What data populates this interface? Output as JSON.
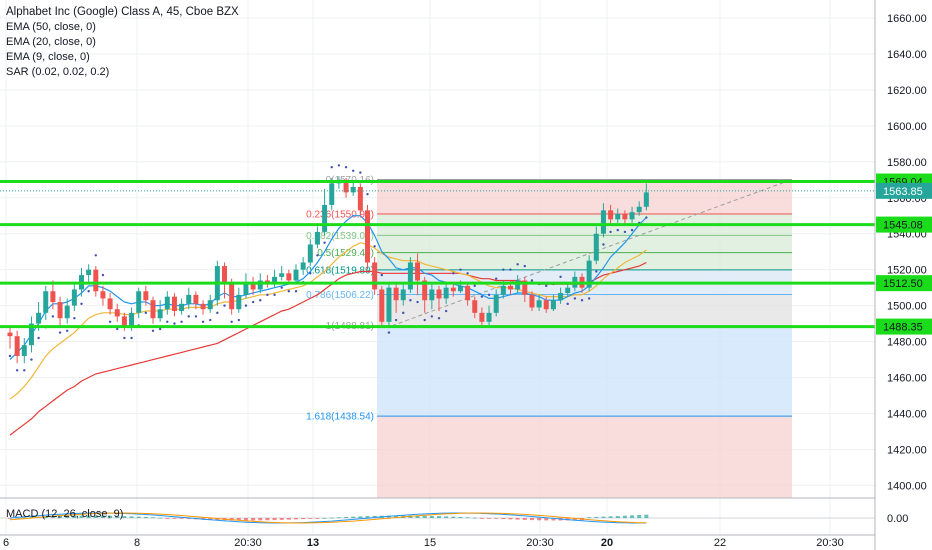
{
  "legend": {
    "title": "Alphabet Inc (Google) Class A, 45, Cboe BZX",
    "studies": [
      "EMA (50, close, 0)",
      "EMA (20, close, 0)",
      "EMA (9, close, 0)",
      "SAR (0.02, 0.02, 0.2)"
    ]
  },
  "macd_label": "MACD (12, 26, close, 9)",
  "colors": {
    "up": "#26a69a",
    "down": "#ef5350",
    "ema50": "#e53935",
    "ema20": "#f0b73a",
    "ema9": "#2196f3",
    "sar": "#3f51b5",
    "level": "#1bdc1b",
    "fib_red": "#f8d3d3",
    "fib_green": "#d9ecd9",
    "fib_gray": "#e3e3e3",
    "fib_blue": "#cfe5fb"
  },
  "chart_data": {
    "type": "candlestick",
    "x_tick_labels": [
      "6",
      "8",
      "20:30",
      "13",
      "15",
      "20:30",
      "20",
      "22",
      "20:30"
    ],
    "y_ticks": [
      "1660.00",
      "1640.00",
      "1620.00",
      "1600.00",
      "1580.00",
      "1560.00",
      "1540.00",
      "1520.00",
      "1500.00",
      "1480.00",
      "1460.00",
      "1440.00",
      "1420.00",
      "1400.00"
    ],
    "ylim": [
      1393,
      1670
    ],
    "levels": [
      "1569.04",
      "1545.08",
      "1512.50",
      "1488.35"
    ],
    "current_price": "1563.85",
    "fibonacci": [
      {
        "label": "0(1570.16)",
        "value": 1570.16
      },
      {
        "label": "0.236(1550.96)",
        "value": 1550.96
      },
      {
        "label": "0.382(1539.08)",
        "value": 1539.08
      },
      {
        "label": "0.5(1529.48)",
        "value": 1529.48
      },
      {
        "label": "0.618(1519.89)",
        "value": 1519.89
      },
      {
        "label": "0.786(1506.22)",
        "value": 1506.22
      },
      {
        "label": "1(1488.81)",
        "value": 1488.81
      },
      {
        "label": "1.618(1438.54)",
        "value": 1438.54
      }
    ],
    "candles": [
      [
        1485,
        1483,
        1489,
        1476
      ],
      [
        1483,
        1472,
        1486,
        1468
      ],
      [
        1472,
        1478,
        1482,
        1468
      ],
      [
        1478,
        1490,
        1494,
        1474
      ],
      [
        1490,
        1496,
        1502,
        1486
      ],
      [
        1496,
        1508,
        1511,
        1492
      ],
      [
        1508,
        1502,
        1514,
        1498
      ],
      [
        1502,
        1493,
        1505,
        1489
      ],
      [
        1493,
        1500,
        1504,
        1490
      ],
      [
        1500,
        1509,
        1513,
        1497
      ],
      [
        1509,
        1517,
        1521,
        1505
      ],
      [
        1517,
        1520,
        1523,
        1512
      ],
      [
        1520,
        1508,
        1522,
        1505
      ],
      [
        1508,
        1504,
        1511,
        1500
      ],
      [
        1504,
        1498,
        1507,
        1495
      ],
      [
        1498,
        1494,
        1501,
        1491
      ],
      [
        1494,
        1489,
        1496,
        1486
      ],
      [
        1489,
        1496,
        1499,
        1486
      ],
      [
        1496,
        1508,
        1510,
        1493
      ],
      [
        1508,
        1503,
        1511,
        1500
      ],
      [
        1503,
        1493,
        1505,
        1490
      ],
      [
        1493,
        1498,
        1503,
        1491
      ],
      [
        1498,
        1505,
        1508,
        1495
      ],
      [
        1505,
        1497,
        1507,
        1494
      ],
      [
        1497,
        1501,
        1504,
        1495
      ],
      [
        1501,
        1506,
        1510,
        1498
      ],
      [
        1506,
        1501,
        1508,
        1498
      ],
      [
        1501,
        1498,
        1503,
        1495
      ],
      [
        1498,
        1503,
        1506,
        1496
      ],
      [
        1503,
        1522,
        1525,
        1500
      ],
      [
        1522,
        1512,
        1524,
        1504
      ],
      [
        1512,
        1498,
        1515,
        1495
      ],
      [
        1498,
        1506,
        1510,
        1496
      ],
      [
        1506,
        1513,
        1518,
        1504
      ],
      [
        1513,
        1509,
        1516,
        1506
      ],
      [
        1509,
        1514,
        1518,
        1507
      ],
      [
        1514,
        1512,
        1517,
        1510
      ],
      [
        1512,
        1516,
        1520,
        1510
      ],
      [
        1516,
        1518,
        1522,
        1514
      ],
      [
        1518,
        1514,
        1520,
        1512
      ],
      [
        1514,
        1520,
        1523,
        1512
      ],
      [
        1520,
        1524,
        1527,
        1517
      ],
      [
        1524,
        1534,
        1537,
        1522
      ],
      [
        1534,
        1541,
        1544,
        1532
      ],
      [
        1541,
        1556,
        1565,
        1539
      ],
      [
        1556,
        1568,
        1571,
        1553
      ],
      [
        1568,
        1570,
        1572,
        1565
      ],
      [
        1570,
        1563,
        1571,
        1560
      ],
      [
        1563,
        1566,
        1569,
        1561
      ],
      [
        1566,
        1553,
        1568,
        1549
      ],
      [
        1553,
        1524,
        1556,
        1520
      ],
      [
        1524,
        1509,
        1527,
        1506
      ],
      [
        1509,
        1491,
        1511,
        1489
      ],
      [
        1491,
        1510,
        1513,
        1489
      ],
      [
        1510,
        1503,
        1512,
        1496
      ],
      [
        1503,
        1509,
        1512,
        1500
      ],
      [
        1509,
        1524,
        1527,
        1507
      ],
      [
        1524,
        1514,
        1529,
        1506
      ],
      [
        1514,
        1503,
        1516,
        1496
      ],
      [
        1503,
        1509,
        1512,
        1498
      ],
      [
        1509,
        1504,
        1511,
        1497
      ],
      [
        1504,
        1510,
        1513,
        1501
      ],
      [
        1510,
        1508,
        1512,
        1505
      ],
      [
        1508,
        1511,
        1514,
        1507
      ],
      [
        1511,
        1503,
        1512,
        1500
      ],
      [
        1503,
        1496,
        1505,
        1493
      ],
      [
        1496,
        1491,
        1499,
        1489
      ],
      [
        1491,
        1496,
        1500,
        1489
      ],
      [
        1496,
        1506,
        1509,
        1494
      ],
      [
        1506,
        1511,
        1514,
        1504
      ],
      [
        1511,
        1509,
        1514,
        1506
      ],
      [
        1509,
        1514,
        1517,
        1507
      ],
      [
        1514,
        1506,
        1516,
        1502
      ],
      [
        1506,
        1499,
        1508,
        1497
      ],
      [
        1499,
        1503,
        1506,
        1497
      ],
      [
        1503,
        1498,
        1505,
        1496
      ],
      [
        1498,
        1503,
        1506,
        1497
      ],
      [
        1503,
        1507,
        1510,
        1501
      ],
      [
        1507,
        1510,
        1513,
        1505
      ],
      [
        1510,
        1516,
        1519,
        1508
      ],
      [
        1516,
        1510,
        1518,
        1507
      ],
      [
        1510,
        1525,
        1528,
        1508
      ],
      [
        1525,
        1540,
        1544,
        1523
      ],
      [
        1540,
        1553,
        1557,
        1538
      ],
      [
        1553,
        1548,
        1556,
        1545
      ],
      [
        1548,
        1551,
        1554,
        1546
      ],
      [
        1551,
        1548,
        1553,
        1545
      ],
      [
        1548,
        1552,
        1555,
        1546
      ],
      [
        1552,
        1555,
        1558,
        1550
      ],
      [
        1555,
        1563,
        1568,
        1553
      ]
    ],
    "ema50": [
      1428,
      1431,
      1434,
      1437,
      1441,
      1444,
      1447,
      1450,
      1453,
      1455,
      1458,
      1460,
      1462,
      1463,
      1464,
      1465,
      1466,
      1467,
      1468,
      1469,
      1470,
      1471,
      1472,
      1473,
      1474,
      1475,
      1476,
      1477,
      1478,
      1479,
      1481,
      1483,
      1485,
      1487,
      1489,
      1491,
      1493,
      1495,
      1497,
      1498,
      1500,
      1502,
      1504,
      1506,
      1509,
      1512,
      1515,
      1517,
      1518,
      1519,
      1519,
      1519,
      1518,
      1518,
      1518,
      1518,
      1518,
      1518,
      1518,
      1518,
      1518,
      1518,
      1518,
      1518,
      1517,
      1516,
      1515,
      1515,
      1514,
      1514,
      1514,
      1514,
      1513,
      1513,
      1512,
      1512,
      1512,
      1512,
      1512,
      1512,
      1512,
      1513,
      1515,
      1517,
      1518,
      1519,
      1520,
      1521,
      1522,
      1524
    ],
    "ema20": [
      1448,
      1451,
      1455,
      1460,
      1466,
      1472,
      1476,
      1479,
      1482,
      1485,
      1489,
      1493,
      1495,
      1496,
      1496,
      1496,
      1495,
      1495,
      1496,
      1497,
      1497,
      1497,
      1498,
      1498,
      1498,
      1499,
      1499,
      1499,
      1499,
      1501,
      1502,
      1502,
      1503,
      1504,
      1505,
      1506,
      1506,
      1507,
      1508,
      1509,
      1510,
      1511,
      1513,
      1516,
      1519,
      1523,
      1527,
      1530,
      1533,
      1535,
      1534,
      1532,
      1529,
      1527,
      1526,
      1525,
      1525,
      1525,
      1523,
      1522,
      1521,
      1520,
      1519,
      1518,
      1517,
      1515,
      1513,
      1511,
      1510,
      1510,
      1510,
      1509,
      1508,
      1507,
      1506,
      1505,
      1505,
      1505,
      1505,
      1506,
      1506,
      1508,
      1511,
      1515,
      1518,
      1521,
      1524,
      1526,
      1528,
      1531
    ],
    "ema9": [
      1470,
      1474,
      1478,
      1484,
      1490,
      1497,
      1501,
      1501,
      1502,
      1504,
      1507,
      1511,
      1511,
      1510,
      1508,
      1505,
      1502,
      1501,
      1502,
      1502,
      1500,
      1500,
      1501,
      1500,
      1500,
      1501,
      1501,
      1500,
      1501,
      1505,
      1507,
      1505,
      1505,
      1506,
      1507,
      1508,
      1509,
      1510,
      1511,
      1512,
      1513,
      1515,
      1519,
      1524,
      1530,
      1537,
      1543,
      1547,
      1550,
      1550,
      1546,
      1539,
      1530,
      1526,
      1521,
      1520,
      1521,
      1521,
      1518,
      1517,
      1514,
      1513,
      1512,
      1511,
      1510,
      1508,
      1506,
      1504,
      1504,
      1505,
      1506,
      1507,
      1507,
      1506,
      1505,
      1503,
      1503,
      1503,
      1505,
      1507,
      1508,
      1511,
      1516,
      1521,
      1527,
      1531,
      1535,
      1540,
      1545,
      1549
    ],
    "macd_label_values": "0.00"
  }
}
